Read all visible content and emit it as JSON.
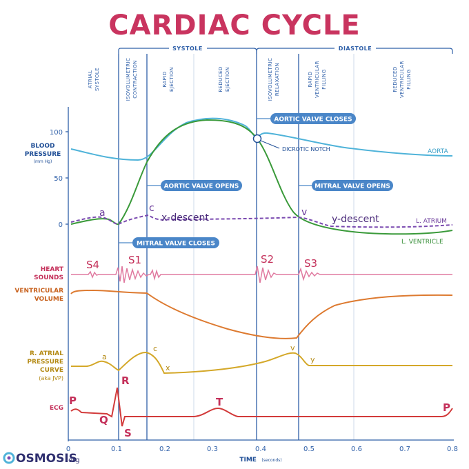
{
  "title": "CARDIAC CYCLE",
  "phases": {
    "systole": "SYSTOLE",
    "diastole": "DIASTOLE",
    "atrial_systole": [
      "ATRIAL",
      "SYSTOLE"
    ],
    "isovolumetric_contraction": [
      "ISOVOLUMETRIC",
      "CONTRACTION"
    ],
    "rapid_ejection": [
      "RAPID",
      "EJECTION"
    ],
    "reduced_ejection": [
      "REDUCED",
      "EJECTION"
    ],
    "isovolumetric_relaxation": [
      "ISOVOLUMETRIC",
      "RELAXATION"
    ],
    "rapid_filling": [
      "RAPID",
      "VENTRICULAR",
      "FILLING"
    ],
    "reduced_filling": [
      "REDUCED",
      "VENTRICULAR",
      "FILLING"
    ]
  },
  "pressure_axis": {
    "ticks": [
      "100",
      "50",
      "0"
    ]
  },
  "time_axis": {
    "ticks": [
      "0",
      "0.1",
      "0.2",
      "0.3",
      "0.4",
      "0.5",
      "0.6",
      "0.7",
      "0.8"
    ],
    "label": "TIME",
    "unit": "(seconds)"
  },
  "labels": {
    "blood_pressure": [
      "BLOOD",
      "PRESSURE"
    ],
    "blood_pressure_unit": "(mm Hg)",
    "heart_sounds": [
      "HEART",
      "SOUNDS"
    ],
    "ventricular_volume": [
      "VENTRICULAR",
      "VOLUME"
    ],
    "atrial_pressure": [
      "R. ATRIAL",
      "PRESSURE",
      "CURVE"
    ],
    "atrial_pressure_note": "(aka JVP)",
    "ecg": "ECG"
  },
  "events": {
    "aortic_valve_closes": "AORTIC VALVE CLOSES",
    "aortic_valve_opens": "AORTIC VALVE OPENS",
    "mitral_valve_opens": "MITRAL VALVE OPENS",
    "mitral_valve_closes": "MITRAL VALVE CLOSES",
    "dicrotic_notch": "DICROTIC NOTCH"
  },
  "curve_labels": {
    "aorta": "AORTA",
    "atrium": "L. ATRIUM",
    "ventricle": "L. VENTRICLE",
    "x_descent": "x-descent",
    "y_descent": "y-descent",
    "a_wave": "a",
    "c_wave": "c",
    "v_wave": "v"
  },
  "sounds": {
    "s1": "S1",
    "s2": "S2",
    "s3": "S3",
    "s4": "S4"
  },
  "jvp_waves": {
    "a": "a",
    "c": "c",
    "x": "x",
    "v": "v",
    "y": "y"
  },
  "ecg_waves": {
    "p1": "P",
    "q": "Q",
    "r": "R",
    "s": "S",
    "t": "T",
    "p2": "P"
  },
  "logo": {
    "name": "OSMOSIS",
    "suffix": ".org"
  },
  "colors": {
    "title": "#c9345f",
    "axis": "#2e5fa8",
    "aorta": "#4fb3d9",
    "ventricle": "#3a9a3a",
    "atrium": "#7a4ab0",
    "heart_sounds": "#e07aa0",
    "volume": "#dd7a30",
    "jvp": "#d4a829",
    "ecg": "#d23a3a",
    "pill": "#4a86c8"
  }
}
